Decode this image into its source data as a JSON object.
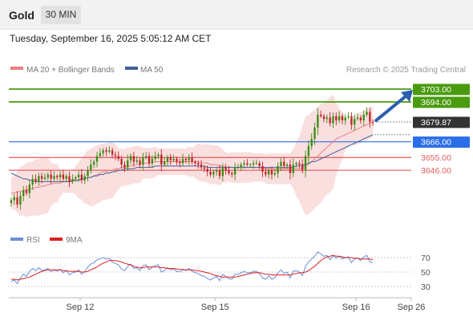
{
  "header": {
    "instrument": "Gold",
    "timeframe": "30 MIN"
  },
  "datetime": "Tuesday, September 16, 2025 5:05:12 AM CET",
  "colors": {
    "up": "#3e8b16",
    "down": "#c1262b",
    "ma20": "#e88080",
    "ma50": "#3f5f9a",
    "bollinger": "#f7c9c9",
    "green_level": "#4a9b0f",
    "blue_level": "#2b6ee8",
    "red_level": "#e25b5b",
    "current": "#333333",
    "rsi": "#6b8fd8",
    "rsi_ma": "#d92020",
    "arrow": "#2b5fad"
  },
  "legend": {
    "ma20": "MA 20 + Bollinger Bands",
    "ma50": "MA 50",
    "rsi": "RSI",
    "rsi_ma": "9MA"
  },
  "copyright": "Research © 2025 Trading Central",
  "chart_data": [
    {
      "type": "candlestick",
      "ylim": [
        3605,
        3712
      ],
      "levels": [
        {
          "label": "3703.00",
          "value": 3703,
          "kind": "resistance"
        },
        {
          "label": "3694.00",
          "value": 3694,
          "kind": "resistance"
        },
        {
          "label": "3679.87",
          "value": 3679.87,
          "kind": "current"
        },
        {
          "label": "3666.00",
          "value": 3666,
          "kind": "pivot"
        },
        {
          "label": "3655.00",
          "value": 3655,
          "kind": "support"
        },
        {
          "label": "3646.00",
          "value": 3646,
          "kind": "support"
        }
      ],
      "x_ticks": [
        {
          "label": "Sep 12",
          "index": 23
        },
        {
          "label": "Sep 15",
          "index": 67
        },
        {
          "label": "Sep 16",
          "index": 113
        },
        {
          "label": "Sep 26",
          "index": 131
        }
      ],
      "n_slots": 131,
      "closes": [
        3625,
        3627,
        3622,
        3628,
        3632,
        3630,
        3636,
        3640,
        3638,
        3642,
        3640,
        3641,
        3643,
        3640,
        3642,
        3641,
        3643,
        3640,
        3642,
        3638,
        3640,
        3641,
        3643,
        3639,
        3642,
        3646,
        3650,
        3652,
        3656,
        3658,
        3660,
        3659,
        3660,
        3657,
        3656,
        3654,
        3650,
        3648,
        3653,
        3656,
        3652,
        3653,
        3650,
        3655,
        3656,
        3651,
        3654,
        3656,
        3657,
        3650,
        3652,
        3655,
        3653,
        3654,
        3652,
        3651,
        3654,
        3653,
        3655,
        3652,
        3651,
        3650,
        3648,
        3647,
        3645,
        3643,
        3645,
        3646,
        3642,
        3648,
        3646,
        3644,
        3643,
        3648,
        3648,
        3650,
        3651,
        3650,
        3650,
        3651,
        3651,
        3649,
        3645,
        3643,
        3646,
        3643,
        3644,
        3649,
        3652,
        3649,
        3650,
        3644,
        3650,
        3651,
        3650,
        3646,
        3656,
        3663,
        3668,
        3676,
        3685,
        3684,
        3682,
        3683,
        3679,
        3684,
        3681,
        3684,
        3681,
        3683,
        3684,
        3678,
        3682,
        3683,
        3681,
        3685,
        3687,
        3680,
        3679.87
      ],
      "ma20": [
        3630,
        3630,
        3631,
        3631,
        3632,
        3632,
        3633,
        3633,
        3634,
        3634,
        3635,
        3635,
        3636,
        3636,
        3637,
        3637,
        3637,
        3638,
        3638,
        3638,
        3638,
        3639,
        3639,
        3640,
        3640,
        3641,
        3641,
        3642,
        3643,
        3644,
        3645,
        3645,
        3646,
        3646,
        3647,
        3647,
        3648,
        3648,
        3649,
        3649,
        3650,
        3650,
        3650,
        3651,
        3651,
        3651,
        3651,
        3652,
        3652,
        3652,
        3652,
        3652,
        3652,
        3652,
        3652,
        3652,
        3652,
        3652,
        3652,
        3652,
        3652,
        3652,
        3651,
        3651,
        3651,
        3650,
        3650,
        3650,
        3649,
        3649,
        3648,
        3648,
        3648,
        3648,
        3648,
        3648,
        3648,
        3648,
        3648,
        3648,
        3648,
        3648,
        3648,
        3647,
        3647,
        3647,
        3647,
        3647,
        3647,
        3647,
        3647,
        3647,
        3647,
        3647,
        3647,
        3648,
        3649,
        3650,
        3652,
        3654,
        3656,
        3658,
        3660,
        3662,
        3664,
        3666,
        3668,
        3669,
        3670,
        3671,
        3672,
        3673,
        3674,
        3675,
        3676,
        3677,
        3678,
        3679,
        3680
      ],
      "ma50": [
        3644,
        3643,
        3642,
        3641,
        3640,
        3640,
        3639,
        3639,
        3638,
        3638,
        3638,
        3638,
        3638,
        3638,
        3638,
        3638,
        3638,
        3638,
        3638,
        3638,
        3639,
        3639,
        3639,
        3640,
        3640,
        3641,
        3641,
        3642,
        3642,
        3643,
        3643,
        3644,
        3644,
        3645,
        3645,
        3646,
        3646,
        3647,
        3647,
        3647,
        3647,
        3648,
        3648,
        3648,
        3648,
        3648,
        3648,
        3649,
        3649,
        3649,
        3649,
        3649,
        3649,
        3649,
        3649,
        3649,
        3649,
        3649,
        3649,
        3649,
        3649,
        3649,
        3649,
        3649,
        3648,
        3648,
        3648,
        3648,
        3648,
        3648,
        3648,
        3648,
        3648,
        3648,
        3648,
        3648,
        3648,
        3648,
        3648,
        3648,
        3648,
        3648,
        3648,
        3648,
        3648,
        3648,
        3648,
        3648,
        3648,
        3648,
        3648,
        3648,
        3648,
        3649,
        3649,
        3650,
        3650,
        3651,
        3652,
        3652,
        3653,
        3654,
        3655,
        3656,
        3657,
        3658,
        3659,
        3660,
        3661,
        3662,
        3663,
        3664,
        3665,
        3666,
        3667,
        3668,
        3669,
        3670,
        3671
      ]
    },
    {
      "type": "line",
      "ylim": [
        20,
        80
      ],
      "ticks": [
        {
          "label": "70",
          "value": 70
        },
        {
          "label": "50",
          "value": 50
        },
        {
          "label": "30",
          "value": 30
        }
      ],
      "series": [
        {
          "name": "RSI",
          "values": [
            37,
            39,
            34,
            42,
            47,
            44,
            51,
            55,
            52,
            56,
            52,
            53,
            55,
            50,
            53,
            51,
            54,
            49,
            52,
            46,
            49,
            50,
            53,
            47,
            51,
            57,
            61,
            63,
            67,
            68,
            70,
            68,
            69,
            64,
            62,
            60,
            54,
            52,
            58,
            61,
            55,
            56,
            52,
            59,
            60,
            53,
            57,
            59,
            60,
            50,
            52,
            56,
            53,
            54,
            51,
            50,
            54,
            52,
            55,
            51,
            49,
            48,
            45,
            44,
            41,
            39,
            42,
            44,
            38,
            47,
            44,
            41,
            40,
            47,
            47,
            49,
            51,
            49,
            49,
            51,
            51,
            48,
            42,
            40,
            45,
            40,
            42,
            49,
            53,
            48,
            50,
            42,
            51,
            52,
            50,
            45,
            58,
            64,
            68,
            72,
            78,
            75,
            72,
            73,
            67,
            73,
            69,
            72,
            68,
            70,
            71,
            63,
            68,
            69,
            66,
            71,
            73,
            64,
            63
          ]
        },
        {
          "name": "9MA",
          "values": [
            40,
            40,
            39,
            40,
            41,
            42,
            43,
            45,
            47,
            49,
            51,
            52,
            53,
            53,
            53,
            53,
            53,
            52,
            52,
            51,
            51,
            51,
            51,
            50,
            50,
            51,
            53,
            55,
            57,
            60,
            62,
            64,
            66,
            66,
            66,
            65,
            64,
            62,
            61,
            60,
            58,
            57,
            56,
            56,
            57,
            57,
            57,
            57,
            57,
            56,
            56,
            55,
            55,
            55,
            54,
            54,
            53,
            53,
            53,
            53,
            52,
            52,
            51,
            50,
            49,
            48,
            46,
            45,
            44,
            43,
            43,
            43,
            43,
            43,
            44,
            45,
            46,
            47,
            48,
            49,
            49,
            49,
            48,
            47,
            47,
            46,
            46,
            46,
            46,
            46,
            46,
            46,
            47,
            48,
            49,
            49,
            50,
            52,
            55,
            58,
            62,
            66,
            69,
            71,
            72,
            73,
            72,
            72,
            71,
            70,
            70,
            70,
            69,
            69,
            68,
            68,
            68,
            68,
            67
          ]
        }
      ]
    }
  ]
}
